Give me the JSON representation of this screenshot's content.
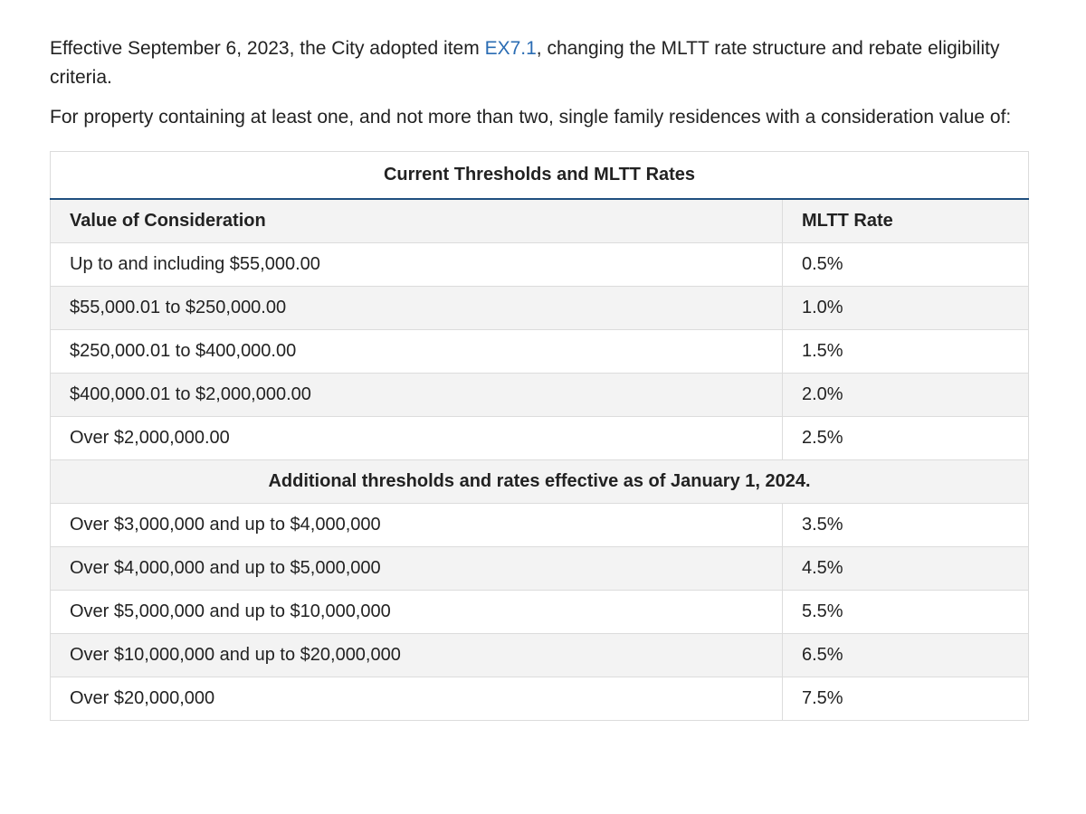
{
  "intro": {
    "prefix": "Effective September 6, 2023, the City adopted item ",
    "link_text": "EX7.1",
    "suffix": ", changing the MLTT rate structure and rebate eligibility criteria."
  },
  "scope_text": "For property containing at least one, and not more than two, single family residences with a consideration value of:",
  "table": {
    "caption": "Current Thresholds and MLTT Rates",
    "headers": {
      "value": "Value of Consideration",
      "rate": "MLTT Rate"
    },
    "current_rows": [
      {
        "value": "Up to and including $55,000.00",
        "rate": "0.5%"
      },
      {
        "value": "$55,000.01 to $250,000.00",
        "rate": "1.0%"
      },
      {
        "value": "$250,000.01 to $400,000.00",
        "rate": "1.5%"
      },
      {
        "value": "$400,000.01 to $2,000,000.00",
        "rate": "2.0%"
      },
      {
        "value": "Over $2,000,000.00",
        "rate": "2.5%"
      }
    ],
    "additional_heading": "Additional thresholds and rates effective as of January 1, 2024.",
    "additional_rows": [
      {
        "value": "Over $3,000,000 and up to $4,000,000",
        "rate": "3.5%"
      },
      {
        "value": "Over $4,000,000 and up to $5,000,000",
        "rate": "4.5%"
      },
      {
        "value": "Over $5,000,000 and up to $10,000,000",
        "rate": "5.5%"
      },
      {
        "value": "Over $10,000,000 and up to $20,000,000",
        "rate": "6.5%"
      },
      {
        "value": "Over $20,000,000",
        "rate": "7.5%"
      }
    ]
  },
  "colors": {
    "link": "#2a6cb3",
    "header_rule": "#1f4f7f",
    "row_shade": "#f3f3f3",
    "border": "#dcdcdc"
  }
}
